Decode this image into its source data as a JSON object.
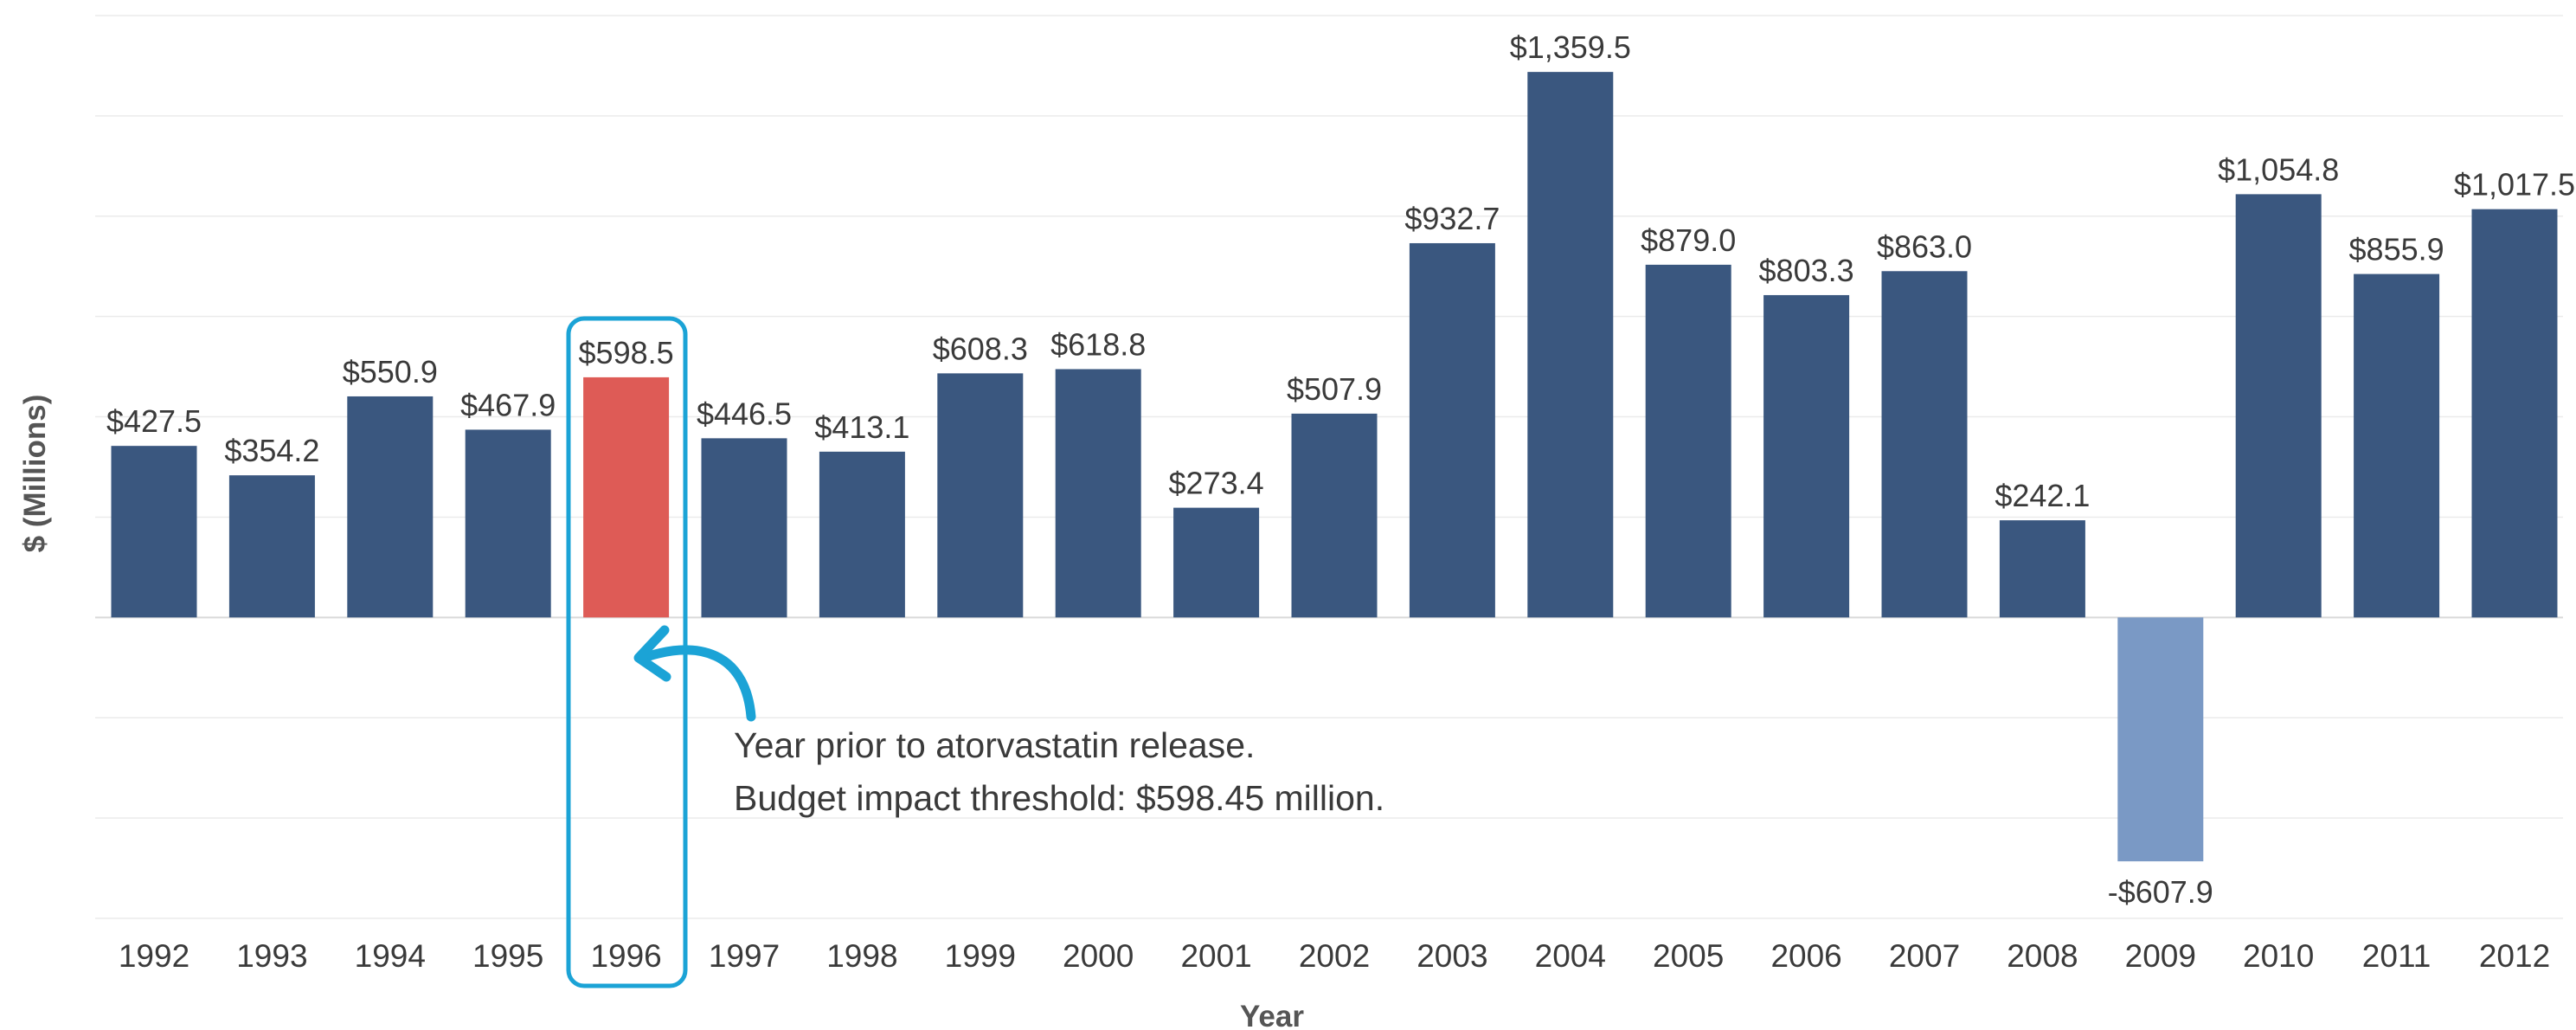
{
  "chart_data": {
    "type": "bar",
    "categories": [
      "1992",
      "1993",
      "1994",
      "1995",
      "1996",
      "1997",
      "1998",
      "1999",
      "2000",
      "2001",
      "2002",
      "2003",
      "2004",
      "2005",
      "2006",
      "2007",
      "2008",
      "2009",
      "2010",
      "2011",
      "2012"
    ],
    "values": [
      427.5,
      354.2,
      550.9,
      467.9,
      598.5,
      446.5,
      413.1,
      608.3,
      618.8,
      273.4,
      507.9,
      932.7,
      1359.5,
      879.0,
      803.3,
      863.0,
      242.1,
      -607.9,
      1054.8,
      855.9,
      1017.5
    ],
    "value_labels": [
      "$427.5",
      "$354.2",
      "$550.9",
      "$467.9",
      "$598.5",
      "$446.5",
      "$413.1",
      "$608.3",
      "$618.8",
      "$273.4",
      "$507.9",
      "$932.7",
      "$1,359.5",
      "$879.0",
      "$803.3",
      "$863.0",
      "$242.1",
      "-$607.9",
      "$1,054.8",
      "$855.9",
      "$1,017.5"
    ],
    "xlabel": "Year",
    "ylabel": "$ (Millions)",
    "ylim": [
      -750,
      1500
    ],
    "grid": true,
    "highlight_category": "1996",
    "colors": {
      "positive": "#3a577f",
      "negative": "#7a99c5",
      "highlight": "#de5b56",
      "annotation": "#1ba3d6",
      "grid": "#ebebeb"
    },
    "annotation": {
      "line1": "Year prior to atorvastatin release.",
      "line2": "Budget impact threshold: $598.45 million."
    }
  }
}
